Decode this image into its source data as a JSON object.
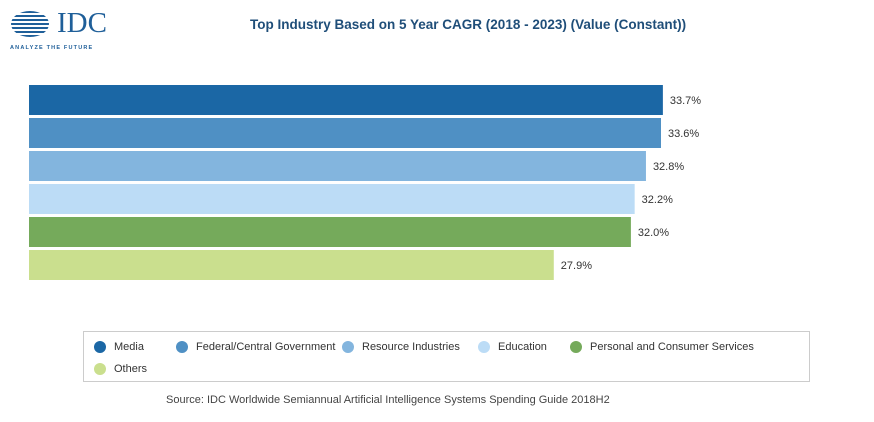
{
  "logo": {
    "text": "IDC",
    "tagline": "ANALYZE THE FUTURE"
  },
  "chart_data": {
    "type": "bar",
    "orientation": "horizontal",
    "title": "Top Industry Based on 5 Year CAGR (2018 - 2023) (Value (Constant))",
    "categories": [
      "Media",
      "Federal/Central Government",
      "Resource Industries",
      "Education",
      "Personal and Consumer Services",
      "Others"
    ],
    "values": [
      33.7,
      33.6,
      32.8,
      32.2,
      32.0,
      27.9
    ],
    "value_labels": [
      "33.7%",
      "33.6%",
      "32.8%",
      "32.2%",
      "32.0%",
      "27.9%"
    ],
    "colors": [
      "#1b67a5",
      "#4f90c4",
      "#83b5de",
      "#bcdcf6",
      "#75aa5b",
      "#cadf8e"
    ],
    "xlim": [
      0,
      42
    ],
    "grid": false,
    "legend_placement": "bottom"
  },
  "source": "Source: IDC Worldwide Semiannual Artificial Intelligence Systems Spending Guide 2018H2"
}
